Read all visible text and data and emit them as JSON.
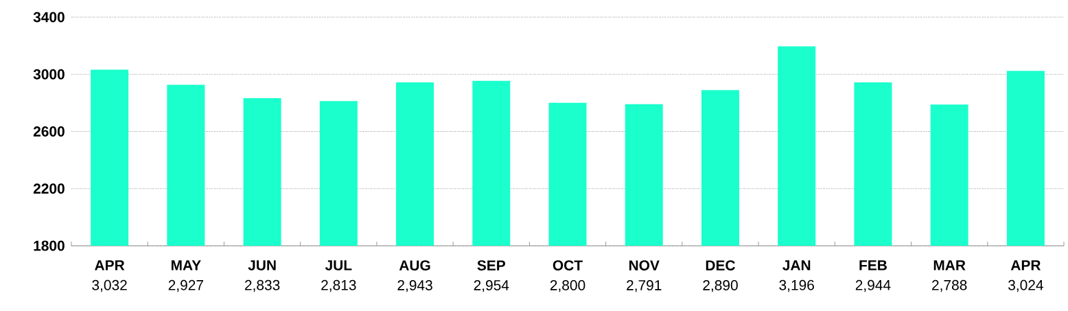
{
  "chart_data": {
    "type": "bar",
    "categories": [
      "APR",
      "MAY",
      "JUN",
      "JUL",
      "AUG",
      "SEP",
      "OCT",
      "NOV",
      "DEC",
      "JAN",
      "FEB",
      "MAR",
      "APR"
    ],
    "values": [
      3032,
      2927,
      2833,
      2813,
      2943,
      2954,
      2800,
      2791,
      2890,
      3196,
      2944,
      2788,
      3024
    ],
    "value_labels": [
      "3,032",
      "2,927",
      "2,833",
      "2,813",
      "2,943",
      "2,954",
      "2,800",
      "2,791",
      "2,890",
      "3,196",
      "2,944",
      "2,788",
      "3,024"
    ],
    "color": "#1affcc",
    "ylim": [
      1800,
      3400
    ],
    "yticks": [
      1800,
      2200,
      2600,
      3000,
      3400
    ],
    "grid": "y"
  }
}
